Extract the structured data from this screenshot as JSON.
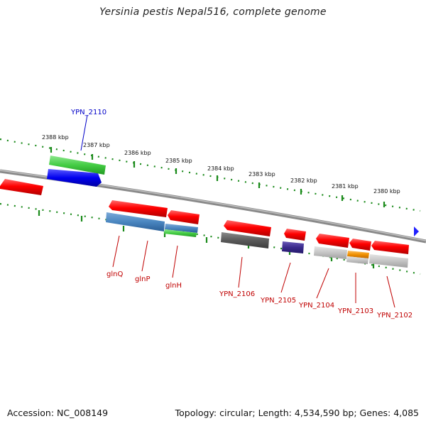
{
  "title": "Yersinia pestis Nepal516, complete genome",
  "footer": {
    "accession": "Accession: NC_008149",
    "summary": "Topology: circular; Length: 4,534,590 bp; Genes: 4,085"
  },
  "ruler": {
    "units": "kbp",
    "labels": [
      "2388 kbp",
      "2387 kbp",
      "2386 kbp",
      "2385 kbp",
      "2384 kbp",
      "2383 kbp",
      "2382 kbp",
      "2381 kbp",
      "2380 kbp"
    ]
  },
  "gene_labels": {
    "ypn_2110": "YPN_2110",
    "glnq": "glnQ",
    "glnp": "glnP",
    "glnh": "glnH",
    "ypn_2106": "YPN_2106",
    "ypn_2105": "YPN_2105",
    "ypn_2104": "YPN_2104",
    "ypn_2103": "YPN_2103",
    "ypn_2102": "YPN_2102"
  },
  "colors": {
    "cds": "#ff0000",
    "blast_blue": "#4a86c0",
    "blast_green": "#44cc44",
    "blast_gray": "#5a5a5a",
    "blast_light_gray": "#c4c4c4",
    "blast_purple": "#3a2a8c",
    "blast_orange": "#f09000",
    "forward_gene": "#0000ee",
    "backbone": "#8a8a8a",
    "ruler": "#1a8a1a",
    "label_red": "#c00000",
    "label_blue": "#0000c8"
  }
}
